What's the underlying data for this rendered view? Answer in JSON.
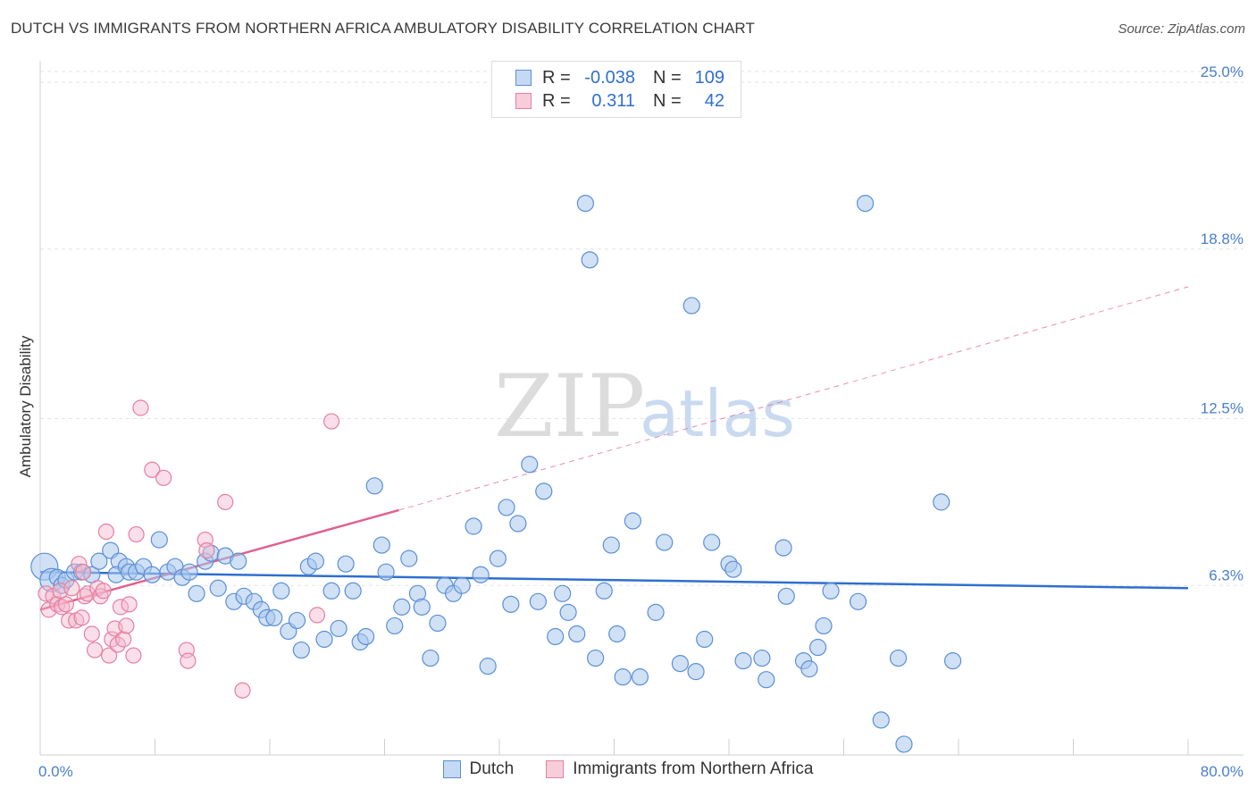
{
  "title": "DUTCH VS IMMIGRANTS FROM NORTHERN AFRICA AMBULATORY DISABILITY CORRELATION CHART",
  "source": "Source: ZipAtlas.com",
  "watermark": {
    "zip": "ZIP",
    "atlas": "atlas"
  },
  "legend": {
    "rows": [
      {
        "r_label": "R =",
        "r_value": "-0.038",
        "n_label": "N =",
        "n_value": "109"
      },
      {
        "r_label": "R =",
        "r_value": "0.311",
        "n_label": "N =",
        "n_value": "42"
      }
    ]
  },
  "bottom_legend": {
    "series1": "Dutch",
    "series2": "Immigrants from Northern Africa"
  },
  "colors": {
    "dutch_fill": "#aac8ef",
    "dutch_stroke": "#5b8fd6",
    "dutch_line": "#2f6fd0",
    "imm_fill": "#f5b8cb",
    "imm_stroke": "#e57fa1",
    "imm_line": "#e0608e",
    "axis_label": "#4a7fc8",
    "grid": "#e3e3e3"
  },
  "chart_data": {
    "type": "scatter",
    "title": "DUTCH VS IMMIGRANTS FROM NORTHERN AFRICA AMBULATORY DISABILITY CORRELATION CHART",
    "xlabel": "",
    "ylabel": "Ambulatory Disability",
    "xlim": [
      0,
      80
    ],
    "ylim": [
      0,
      25.6
    ],
    "x_tick_labels": [
      "0.0%",
      "80.0%"
    ],
    "y_ticks": [
      6.3,
      12.5,
      18.8,
      25.0
    ],
    "y_tick_labels": [
      "6.3%",
      "12.5%",
      "18.8%",
      "25.0%"
    ],
    "grid": true,
    "legend_position": "top-center",
    "series": [
      {
        "name": "Dutch",
        "r": -0.038,
        "n": 109,
        "trend": {
          "x": [
            0,
            80
          ],
          "y": [
            6.8,
            6.2
          ]
        },
        "points": [
          [
            0.3,
            7.0
          ],
          [
            0.8,
            6.5
          ],
          [
            1.2,
            6.6
          ],
          [
            1.5,
            6.3
          ],
          [
            1.8,
            6.5
          ],
          [
            2.4,
            6.8
          ],
          [
            2.9,
            6.8
          ],
          [
            3.6,
            6.7
          ],
          [
            4.1,
            7.2
          ],
          [
            4.9,
            7.6
          ],
          [
            5.5,
            7.2
          ],
          [
            5.3,
            6.7
          ],
          [
            6.0,
            7.0
          ],
          [
            6.2,
            6.8
          ],
          [
            6.7,
            6.8
          ],
          [
            7.2,
            7.0
          ],
          [
            7.8,
            6.7
          ],
          [
            8.3,
            8.0
          ],
          [
            8.9,
            6.8
          ],
          [
            9.4,
            7.0
          ],
          [
            9.9,
            6.6
          ],
          [
            10.4,
            6.8
          ],
          [
            10.9,
            6.0
          ],
          [
            11.5,
            7.2
          ],
          [
            11.9,
            7.5
          ],
          [
            12.4,
            6.2
          ],
          [
            12.9,
            7.4
          ],
          [
            13.5,
            5.7
          ],
          [
            13.8,
            7.2
          ],
          [
            14.2,
            5.9
          ],
          [
            14.9,
            5.7
          ],
          [
            15.4,
            5.4
          ],
          [
            15.8,
            5.1
          ],
          [
            16.3,
            5.1
          ],
          [
            16.8,
            6.1
          ],
          [
            17.3,
            4.6
          ],
          [
            17.9,
            5.0
          ],
          [
            18.2,
            3.9
          ],
          [
            18.7,
            7.0
          ],
          [
            19.2,
            7.2
          ],
          [
            19.8,
            4.3
          ],
          [
            20.3,
            6.1
          ],
          [
            20.8,
            4.7
          ],
          [
            21.3,
            7.1
          ],
          [
            21.8,
            6.1
          ],
          [
            22.3,
            4.2
          ],
          [
            22.7,
            4.4
          ],
          [
            23.3,
            10.0
          ],
          [
            23.8,
            7.8
          ],
          [
            24.1,
            6.8
          ],
          [
            24.7,
            4.8
          ],
          [
            25.2,
            5.5
          ],
          [
            25.7,
            7.3
          ],
          [
            26.3,
            6.0
          ],
          [
            26.6,
            5.5
          ],
          [
            27.2,
            3.6
          ],
          [
            27.7,
            4.9
          ],
          [
            28.2,
            6.3
          ],
          [
            28.8,
            6.0
          ],
          [
            29.4,
            6.3
          ],
          [
            30.2,
            8.5
          ],
          [
            30.7,
            6.7
          ],
          [
            31.2,
            3.3
          ],
          [
            31.9,
            7.3
          ],
          [
            32.5,
            9.2
          ],
          [
            32.8,
            5.6
          ],
          [
            33.3,
            8.6
          ],
          [
            34.1,
            10.8
          ],
          [
            34.7,
            5.7
          ],
          [
            35.1,
            9.8
          ],
          [
            35.9,
            4.4
          ],
          [
            36.4,
            6.0
          ],
          [
            36.8,
            5.3
          ],
          [
            37.4,
            4.5
          ],
          [
            38.0,
            20.5
          ],
          [
            38.3,
            18.4
          ],
          [
            38.7,
            3.6
          ],
          [
            39.3,
            6.1
          ],
          [
            39.8,
            7.8
          ],
          [
            40.2,
            4.5
          ],
          [
            40.6,
            2.9
          ],
          [
            41.3,
            8.7
          ],
          [
            41.8,
            2.9
          ],
          [
            42.9,
            5.3
          ],
          [
            43.5,
            7.9
          ],
          [
            44.6,
            3.4
          ],
          [
            45.4,
            16.7
          ],
          [
            45.7,
            3.1
          ],
          [
            46.3,
            4.3
          ],
          [
            46.8,
            7.9
          ],
          [
            48.0,
            7.1
          ],
          [
            48.3,
            6.9
          ],
          [
            49.0,
            3.5
          ],
          [
            50.3,
            3.6
          ],
          [
            50.6,
            2.8
          ],
          [
            51.8,
            7.7
          ],
          [
            52.0,
            5.9
          ],
          [
            53.2,
            3.5
          ],
          [
            53.6,
            3.2
          ],
          [
            54.2,
            4.0
          ],
          [
            54.6,
            4.8
          ],
          [
            55.1,
            6.1
          ],
          [
            57.0,
            5.7
          ],
          [
            57.5,
            20.5
          ],
          [
            58.6,
            1.3
          ],
          [
            59.8,
            3.6
          ],
          [
            60.2,
            0.4
          ],
          [
            62.8,
            9.4
          ],
          [
            63.6,
            3.5
          ]
        ]
      },
      {
        "name": "Immigrants from Northern Africa",
        "r": 0.311,
        "n": 42,
        "trend": {
          "x": [
            0,
            25
          ],
          "y": [
            5.4,
            9.1
          ]
        },
        "trend_extension": {
          "x": [
            25,
            80
          ],
          "y": [
            9.1,
            17.4
          ]
        },
        "points": [
          [
            0.4,
            6.0
          ],
          [
            0.6,
            5.4
          ],
          [
            0.9,
            5.9
          ],
          [
            1.2,
            5.6
          ],
          [
            1.4,
            6.1
          ],
          [
            1.5,
            5.5
          ],
          [
            1.8,
            5.6
          ],
          [
            2.0,
            5.0
          ],
          [
            2.2,
            6.2
          ],
          [
            2.5,
            5.0
          ],
          [
            2.7,
            7.1
          ],
          [
            2.9,
            5.1
          ],
          [
            3.0,
            6.8
          ],
          [
            3.1,
            5.9
          ],
          [
            3.3,
            6.0
          ],
          [
            3.6,
            4.5
          ],
          [
            3.8,
            3.9
          ],
          [
            4.0,
            6.2
          ],
          [
            4.2,
            5.9
          ],
          [
            4.4,
            6.1
          ],
          [
            4.6,
            8.3
          ],
          [
            4.8,
            3.7
          ],
          [
            5.0,
            4.3
          ],
          [
            5.2,
            4.7
          ],
          [
            5.4,
            4.1
          ],
          [
            5.6,
            5.5
          ],
          [
            5.8,
            4.3
          ],
          [
            6.0,
            4.8
          ],
          [
            6.2,
            5.6
          ],
          [
            6.5,
            3.7
          ],
          [
            6.7,
            8.2
          ],
          [
            7.0,
            12.9
          ],
          [
            7.8,
            10.6
          ],
          [
            8.6,
            10.3
          ],
          [
            10.2,
            3.9
          ],
          [
            10.3,
            3.5
          ],
          [
            11.5,
            8.0
          ],
          [
            11.6,
            7.6
          ],
          [
            12.9,
            9.4
          ],
          [
            14.1,
            2.4
          ],
          [
            19.3,
            5.2
          ],
          [
            20.3,
            12.4
          ]
        ]
      }
    ]
  }
}
